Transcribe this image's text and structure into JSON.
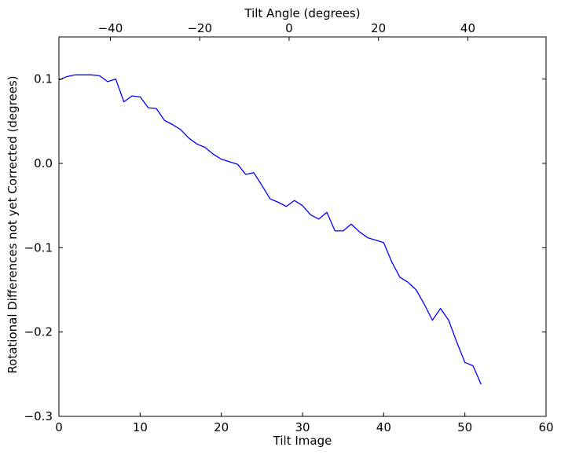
{
  "chart_data": {
    "type": "line",
    "xlabel": "Tilt Image",
    "ylabel": "Rotational Differences not yet Corrected (degrees)",
    "top_xlabel": "Tilt Angle (degrees)",
    "xlim": [
      0,
      60
    ],
    "ylim": [
      -0.3,
      0.15
    ],
    "top_xlim": [
      -51.5,
      57.5
    ],
    "x_ticks": [
      0,
      10,
      20,
      30,
      40,
      50,
      60
    ],
    "x_tick_labels": [
      "0",
      "10",
      "20",
      "30",
      "40",
      "50",
      "60"
    ],
    "y_ticks": [
      -0.3,
      -0.2,
      -0.1,
      0.0,
      0.1
    ],
    "y_tick_labels": [
      "−0.3",
      "−0.2",
      "−0.1",
      "0.0",
      "0.1"
    ],
    "top_x_ticks": [
      -40,
      -20,
      0,
      20,
      40
    ],
    "top_x_tick_labels": [
      "−40",
      "−20",
      "0",
      "20",
      "40"
    ],
    "grid": false,
    "line_color": "#0000ff",
    "series": [
      {
        "x": [
          0,
          1,
          2,
          3,
          4,
          5,
          6,
          7,
          8,
          9,
          10,
          11,
          12,
          13,
          14,
          15,
          16,
          17,
          18,
          19,
          20,
          21,
          22,
          23,
          24,
          25,
          26,
          27,
          28,
          29,
          30,
          31,
          32,
          33,
          34,
          35,
          36,
          37,
          38,
          39,
          40,
          41,
          42,
          43,
          44,
          45,
          46,
          47,
          48,
          49,
          50,
          51,
          52
        ],
        "y": [
          0.099,
          0.103,
          0.105,
          0.105,
          0.105,
          0.104,
          0.097,
          0.1,
          0.073,
          0.08,
          0.079,
          0.066,
          0.065,
          0.051,
          0.046,
          0.04,
          0.03,
          0.023,
          0.019,
          0.011,
          0.005,
          0.002,
          -0.001,
          -0.013,
          -0.011,
          -0.026,
          -0.042,
          -0.046,
          -0.051,
          -0.044,
          -0.05,
          -0.061,
          -0.066,
          -0.058,
          -0.08,
          -0.08,
          -0.072,
          -0.081,
          -0.088,
          -0.091,
          -0.094,
          -0.117,
          -0.135,
          -0.141,
          -0.15,
          -0.167,
          -0.186,
          -0.172,
          -0.186,
          -0.212,
          -0.236,
          -0.24,
          -0.262
        ]
      }
    ]
  }
}
